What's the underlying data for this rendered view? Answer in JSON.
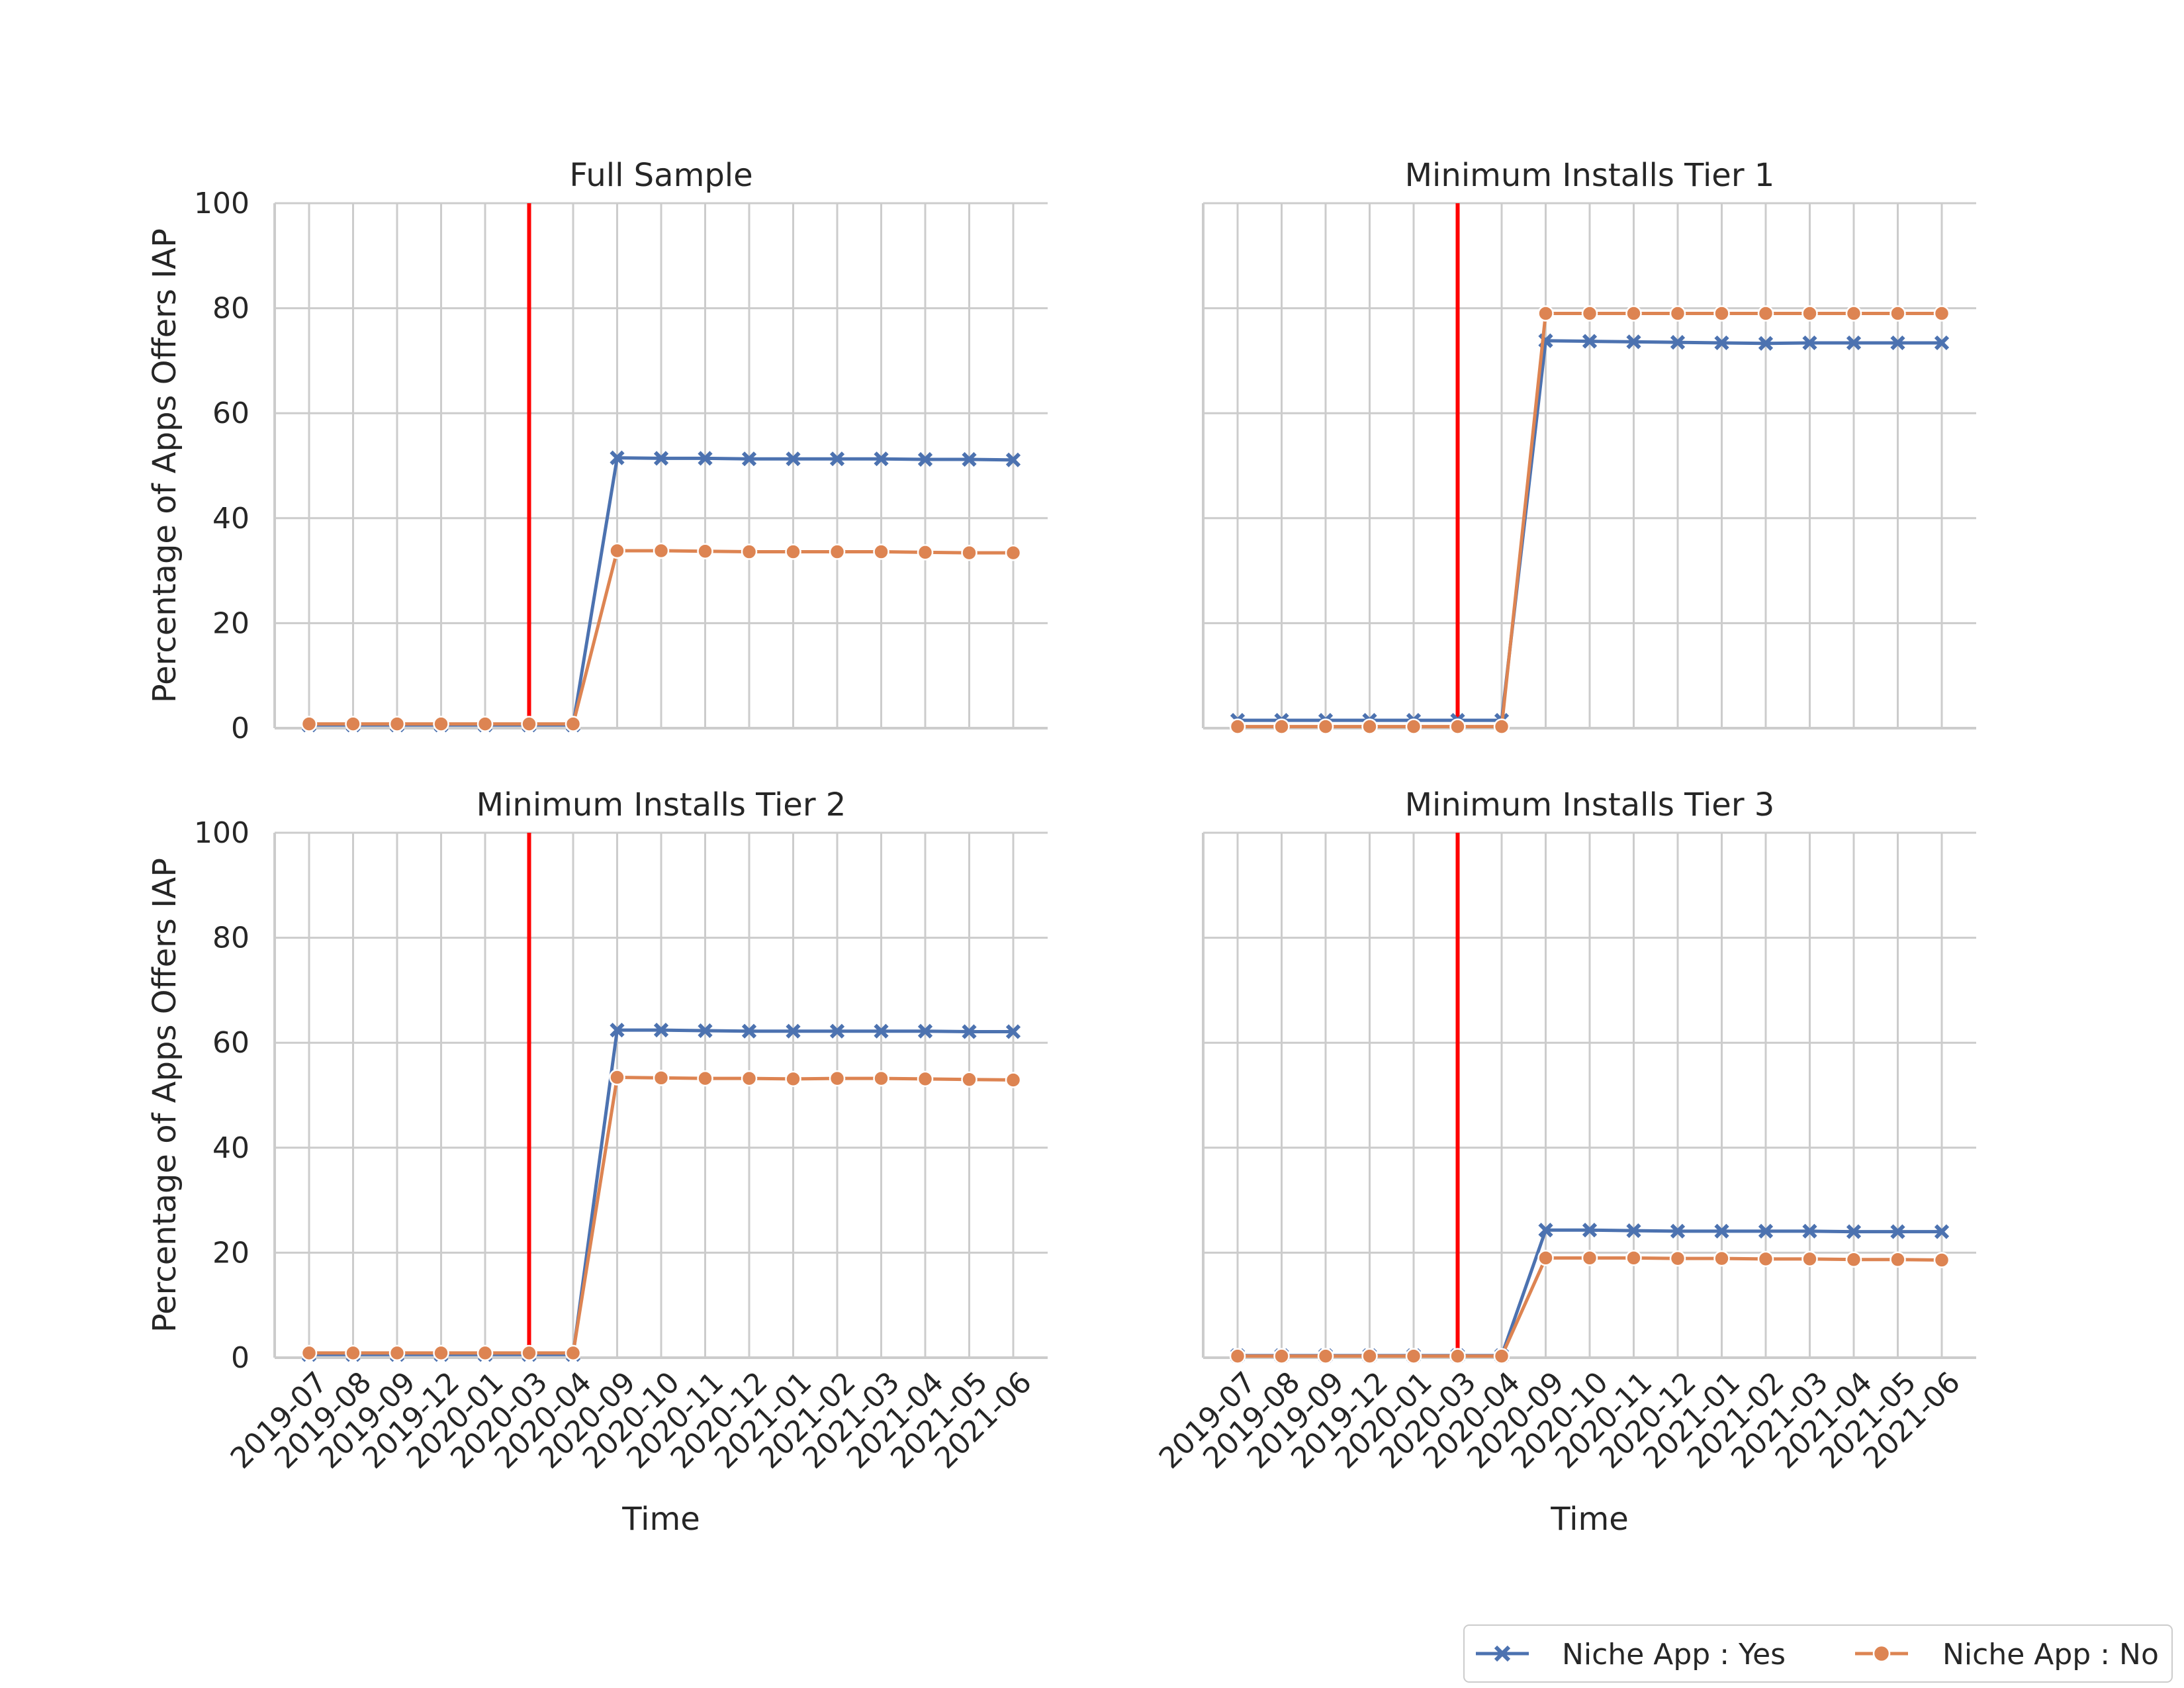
{
  "colors": {
    "yes": "#4c72b0",
    "no": "#dd8452",
    "event_line": "#ff0000",
    "grid": "#cccccc"
  },
  "legend": {
    "placement": "bottom-right",
    "yes_label": "Niche App : Yes",
    "no_label": "Niche App : No"
  },
  "chart_data": [
    {
      "type": "line",
      "title": "Full Sample",
      "xlabel": "",
      "ylabel": "Percentage of Apps Offers IAP",
      "categories": [
        "2019-07",
        "2019-08",
        "2019-09",
        "2019-12",
        "2020-01",
        "2020-03",
        "2020-04",
        "2020-09",
        "2020-10",
        "2020-11",
        "2020-12",
        "2021-01",
        "2021-02",
        "2021-03",
        "2021-04",
        "2021-05",
        "2021-06"
      ],
      "ylim": [
        0,
        100
      ],
      "yticks": [
        "0",
        "20",
        "40",
        "60",
        "80",
        "100"
      ],
      "show_xticks": false,
      "show_yticks": true,
      "event_line_at": "2020-03",
      "series": [
        {
          "name": "Niche App : Yes",
          "values": [
            0.6,
            0.6,
            0.6,
            0.6,
            0.6,
            0.6,
            0.6,
            51.5,
            51.4,
            51.4,
            51.3,
            51.3,
            51.3,
            51.3,
            51.2,
            51.2,
            51.1
          ]
        },
        {
          "name": "Niche App : No",
          "values": [
            0.8,
            0.8,
            0.8,
            0.8,
            0.8,
            0.8,
            0.8,
            33.8,
            33.8,
            33.7,
            33.6,
            33.6,
            33.6,
            33.6,
            33.5,
            33.4,
            33.4
          ]
        }
      ]
    },
    {
      "type": "line",
      "title": "Minimum Installs Tier 1",
      "xlabel": "",
      "ylabel": "",
      "categories": [
        "2019-07",
        "2019-08",
        "2019-09",
        "2019-12",
        "2020-01",
        "2020-03",
        "2020-04",
        "2020-09",
        "2020-10",
        "2020-11",
        "2020-12",
        "2021-01",
        "2021-02",
        "2021-03",
        "2021-04",
        "2021-05",
        "2021-06"
      ],
      "ylim": [
        0,
        100
      ],
      "yticks": [
        "0",
        "20",
        "40",
        "60",
        "80",
        "100"
      ],
      "show_xticks": false,
      "show_yticks": false,
      "event_line_at": "2020-03",
      "series": [
        {
          "name": "Niche App : Yes",
          "values": [
            1.5,
            1.5,
            1.5,
            1.5,
            1.5,
            1.5,
            1.5,
            73.8,
            73.7,
            73.6,
            73.5,
            73.4,
            73.3,
            73.4,
            73.4,
            73.4,
            73.4
          ]
        },
        {
          "name": "Niche App : No",
          "values": [
            0.3,
            0.3,
            0.3,
            0.3,
            0.3,
            0.3,
            0.3,
            79.0,
            79.0,
            79.0,
            79.0,
            79.0,
            79.0,
            79.0,
            79.0,
            79.0,
            79.0
          ]
        }
      ]
    },
    {
      "type": "line",
      "title": "Minimum Installs Tier 2",
      "xlabel": "Time",
      "ylabel": "Percentage of Apps Offers IAP",
      "categories": [
        "2019-07",
        "2019-08",
        "2019-09",
        "2019-12",
        "2020-01",
        "2020-03",
        "2020-04",
        "2020-09",
        "2020-10",
        "2020-11",
        "2020-12",
        "2021-01",
        "2021-02",
        "2021-03",
        "2021-04",
        "2021-05",
        "2021-06"
      ],
      "ylim": [
        0,
        100
      ],
      "yticks": [
        "0",
        "20",
        "40",
        "60",
        "80",
        "100"
      ],
      "show_xticks": true,
      "show_yticks": true,
      "event_line_at": "2020-03",
      "series": [
        {
          "name": "Niche App : Yes",
          "values": [
            0.6,
            0.6,
            0.6,
            0.6,
            0.6,
            0.6,
            0.6,
            62.4,
            62.4,
            62.3,
            62.2,
            62.2,
            62.2,
            62.2,
            62.2,
            62.1,
            62.1
          ]
        },
        {
          "name": "Niche App : No",
          "values": [
            0.9,
            0.9,
            0.9,
            0.9,
            0.9,
            0.9,
            0.9,
            53.4,
            53.3,
            53.2,
            53.2,
            53.1,
            53.2,
            53.2,
            53.1,
            53.0,
            52.9
          ]
        }
      ]
    },
    {
      "type": "line",
      "title": "Minimum Installs Tier 3",
      "xlabel": "Time",
      "ylabel": "",
      "categories": [
        "2019-07",
        "2019-08",
        "2019-09",
        "2019-12",
        "2020-01",
        "2020-03",
        "2020-04",
        "2020-09",
        "2020-10",
        "2020-11",
        "2020-12",
        "2021-01",
        "2021-02",
        "2021-03",
        "2021-04",
        "2021-05",
        "2021-06"
      ],
      "ylim": [
        0,
        100
      ],
      "yticks": [
        "0",
        "20",
        "40",
        "60",
        "80",
        "100"
      ],
      "show_xticks": true,
      "show_yticks": false,
      "event_line_at": "2020-03",
      "series": [
        {
          "name": "Niche App : Yes",
          "values": [
            0.4,
            0.4,
            0.4,
            0.4,
            0.4,
            0.4,
            0.4,
            24.3,
            24.3,
            24.2,
            24.1,
            24.1,
            24.1,
            24.1,
            24.0,
            24.0,
            24.0
          ]
        },
        {
          "name": "Niche App : No",
          "values": [
            0.3,
            0.3,
            0.3,
            0.3,
            0.3,
            0.3,
            0.3,
            19.0,
            19.0,
            19.0,
            18.9,
            18.9,
            18.8,
            18.8,
            18.7,
            18.7,
            18.6
          ]
        }
      ]
    }
  ]
}
